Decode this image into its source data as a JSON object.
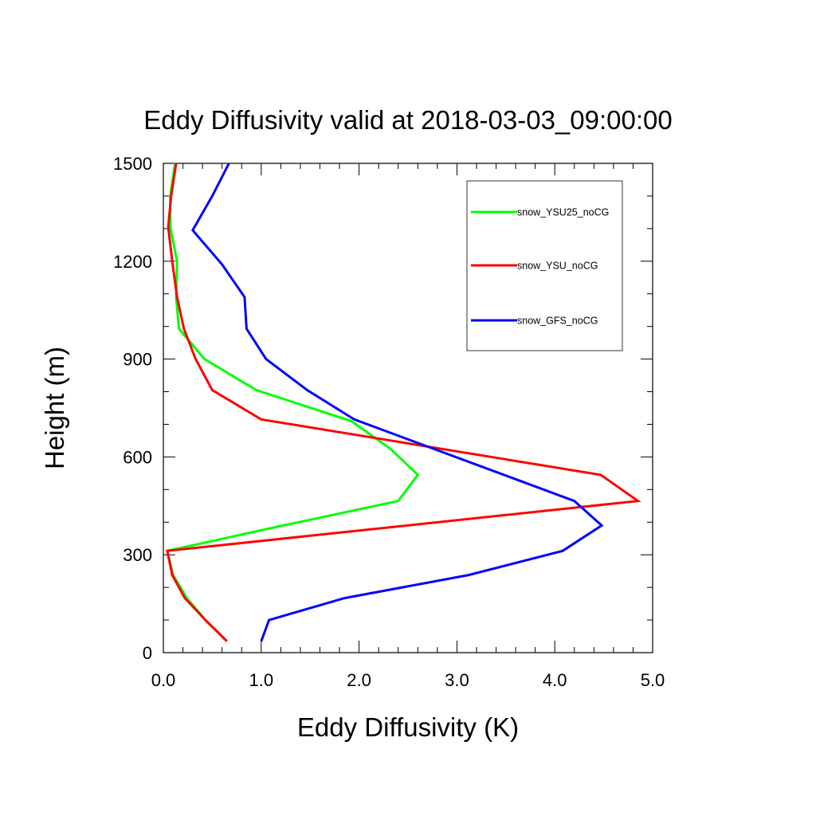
{
  "chart_data": {
    "type": "line",
    "title": "Eddy Diffusivity valid at 2018-03-03_09:00:00",
    "xlabel": "Eddy Diffusivity (K)",
    "ylabel": "Height (m)",
    "xlim": [
      0,
      5
    ],
    "ylim": [
      0,
      1500
    ],
    "xticks": [
      0,
      1,
      2,
      3,
      4,
      5
    ],
    "xtick_labels": [
      "0.0",
      "1.0",
      "2.0",
      "3.0",
      "4.0",
      "5.0"
    ],
    "yticks": [
      0,
      300,
      600,
      900,
      1200,
      1500
    ],
    "ytick_labels": [
      "0",
      "300",
      "600",
      "900",
      "1200",
      "1500"
    ],
    "grid": false,
    "legend_position": "top-right",
    "series": [
      {
        "name": "snow_YSU25_noCG",
        "color": "#00ff00",
        "points": [
          [
            0.65,
            35
          ],
          [
            0.43,
            100
          ],
          [
            0.24,
            167
          ],
          [
            0.1,
            238
          ],
          [
            0.04,
            312
          ],
          [
            1.15,
            385
          ],
          [
            2.4,
            465
          ],
          [
            2.6,
            545
          ],
          [
            2.32,
            625
          ],
          [
            1.92,
            710
          ],
          [
            0.95,
            805
          ],
          [
            0.42,
            900
          ],
          [
            0.16,
            993
          ],
          [
            0.13,
            1090
          ],
          [
            0.14,
            1200
          ],
          [
            0.07,
            1305
          ],
          [
            0.07,
            1400
          ],
          [
            0.12,
            1500
          ]
        ]
      },
      {
        "name": "snow_YSU_noCG",
        "color": "#ff0000",
        "points": [
          [
            0.65,
            35
          ],
          [
            0.43,
            100
          ],
          [
            0.22,
            167
          ],
          [
            0.09,
            238
          ],
          [
            0.04,
            312
          ],
          [
            4.85,
            465
          ],
          [
            4.47,
            545
          ],
          [
            1.0,
            715
          ],
          [
            0.5,
            805
          ],
          [
            0.33,
            900
          ],
          [
            0.21,
            993
          ],
          [
            0.14,
            1090
          ],
          [
            0.09,
            1200
          ],
          [
            0.05,
            1305
          ],
          [
            0.08,
            1400
          ],
          [
            0.13,
            1500
          ]
        ]
      },
      {
        "name": "snow_GFS_noCG",
        "color": "#0000ff",
        "points": [
          [
            1.0,
            35
          ],
          [
            1.08,
            100
          ],
          [
            1.85,
            167
          ],
          [
            3.12,
            238
          ],
          [
            4.08,
            312
          ],
          [
            4.48,
            390
          ],
          [
            4.2,
            465
          ],
          [
            1.95,
            715
          ],
          [
            1.47,
            805
          ],
          [
            1.05,
            900
          ],
          [
            0.85,
            993
          ],
          [
            0.83,
            1090
          ],
          [
            0.6,
            1190
          ],
          [
            0.3,
            1295
          ],
          [
            0.5,
            1400
          ],
          [
            0.67,
            1500
          ]
        ]
      }
    ]
  }
}
